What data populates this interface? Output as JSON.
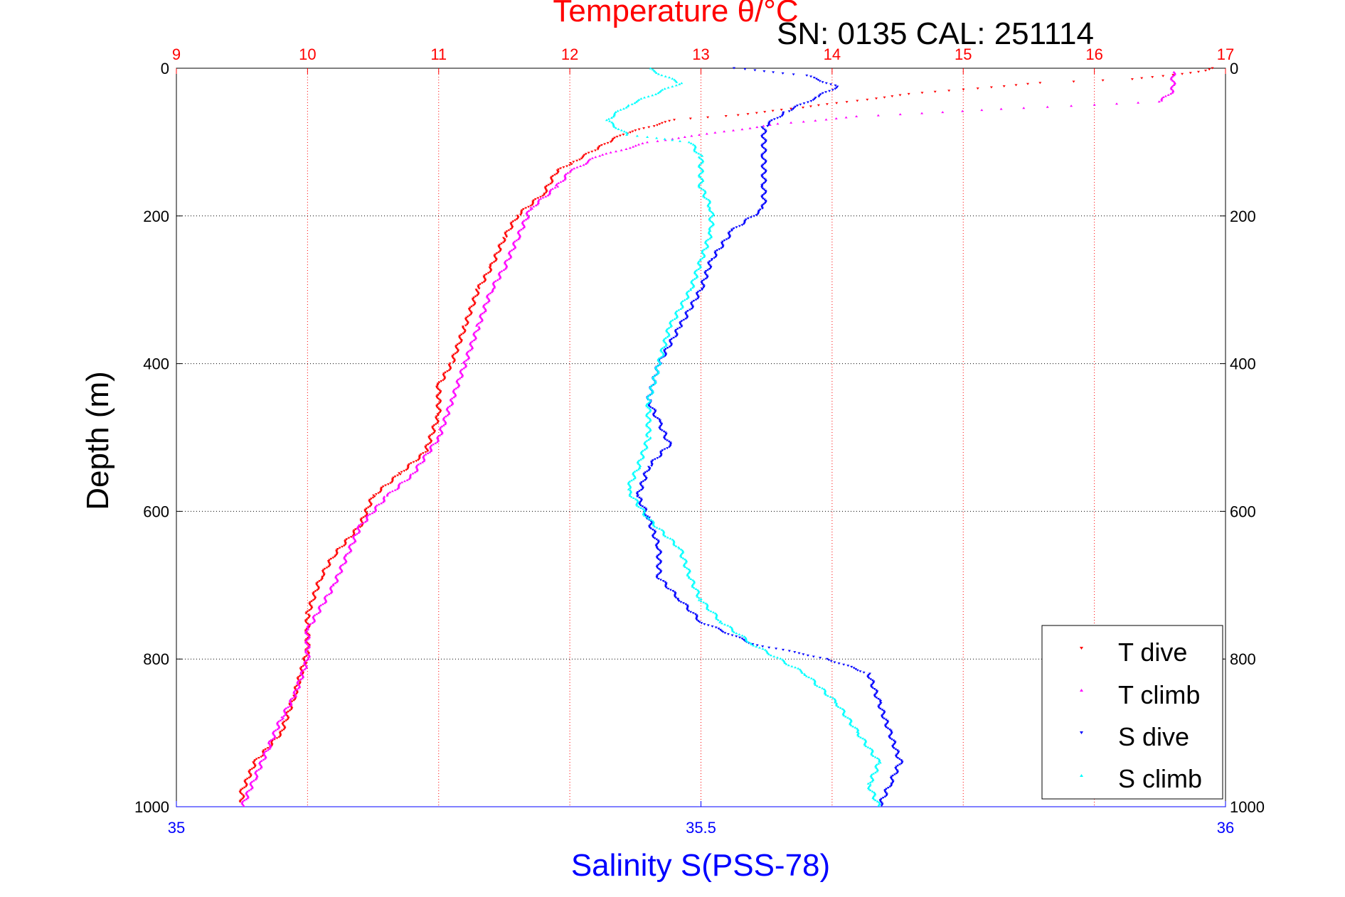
{
  "chart_data": {
    "type": "scatter",
    "title": "Temperature θ/°C",
    "subtitle": "SN: 0135  CAL: 251114",
    "ylabel": "Depth (m)",
    "xlabel": "Salinity S(PSS-78)",
    "y_axis": {
      "min": 0,
      "max": 1000,
      "inverted": true,
      "ticks": [
        "0",
        "200",
        "400",
        "600",
        "800",
        "1000"
      ]
    },
    "x_top": {
      "min": 9,
      "max": 17,
      "ticks": [
        "9",
        "10",
        "11",
        "12",
        "13",
        "14",
        "15",
        "16",
        "17"
      ]
    },
    "x_bottom": {
      "min": 35,
      "max": 36,
      "ticks": [
        "35",
        "35.5",
        "36"
      ]
    },
    "grid": true,
    "legend_position": "bottom-right",
    "series": [
      {
        "name": "T dive",
        "axis": "top",
        "color": "#ff0000",
        "points": [
          [
            16.9,
            0
          ],
          [
            16.8,
            5
          ],
          [
            16.3,
            15
          ],
          [
            15.6,
            20
          ],
          [
            14.6,
            35
          ],
          [
            13.7,
            55
          ],
          [
            13.2,
            65
          ],
          [
            12.8,
            70
          ],
          [
            12.6,
            80
          ],
          [
            12.4,
            90
          ],
          [
            12.3,
            100
          ],
          [
            12.2,
            110
          ],
          [
            12.0,
            130
          ],
          [
            11.9,
            140
          ],
          [
            11.8,
            170
          ],
          [
            11.6,
            200
          ],
          [
            11.5,
            230
          ],
          [
            11.4,
            270
          ],
          [
            11.3,
            300
          ],
          [
            11.2,
            350
          ],
          [
            11.1,
            400
          ],
          [
            11.0,
            430
          ],
          [
            11.0,
            470
          ],
          [
            10.9,
            520
          ],
          [
            10.7,
            550
          ],
          [
            10.5,
            580
          ],
          [
            10.4,
            620
          ],
          [
            10.2,
            660
          ],
          [
            10.1,
            690
          ],
          [
            10.0,
            740
          ],
          [
            10.0,
            790
          ],
          [
            9.9,
            850
          ],
          [
            9.8,
            900
          ],
          [
            9.6,
            940
          ],
          [
            9.5,
            980
          ],
          [
            9.5,
            995
          ]
        ]
      },
      {
        "name": "T climb",
        "axis": "top",
        "color": "#ff00ff",
        "points": [
          [
            16.6,
            5
          ],
          [
            16.6,
            30
          ],
          [
            16.5,
            45
          ],
          [
            15.3,
            55
          ],
          [
            14.2,
            65
          ],
          [
            13.6,
            75
          ],
          [
            13.0,
            90
          ],
          [
            12.6,
            100
          ],
          [
            12.2,
            120
          ],
          [
            12.0,
            140
          ],
          [
            11.9,
            160
          ],
          [
            11.7,
            190
          ],
          [
            11.6,
            230
          ],
          [
            11.5,
            270
          ],
          [
            11.4,
            300
          ],
          [
            11.3,
            350
          ],
          [
            11.2,
            400
          ],
          [
            11.1,
            450
          ],
          [
            11.0,
            500
          ],
          [
            10.8,
            550
          ],
          [
            10.6,
            580
          ],
          [
            10.4,
            620
          ],
          [
            10.3,
            660
          ],
          [
            10.2,
            700
          ],
          [
            10.0,
            760
          ],
          [
            10.0,
            800
          ],
          [
            9.9,
            850
          ],
          [
            9.8,
            880
          ],
          [
            9.7,
            920
          ],
          [
            9.6,
            960
          ],
          [
            9.5,
            1000
          ]
        ]
      },
      {
        "name": "S dive",
        "axis": "bottom",
        "color": "#0000ff",
        "points": [
          [
            35.53,
            0
          ],
          [
            35.6,
            10
          ],
          [
            35.63,
            25
          ],
          [
            35.61,
            40
          ],
          [
            35.58,
            60
          ],
          [
            35.56,
            80
          ],
          [
            35.56,
            120
          ],
          [
            35.56,
            160
          ],
          [
            35.56,
            190
          ],
          [
            35.53,
            220
          ],
          [
            35.51,
            260
          ],
          [
            35.5,
            300
          ],
          [
            35.48,
            350
          ],
          [
            35.46,
            400
          ],
          [
            35.45,
            450
          ],
          [
            35.46,
            480
          ],
          [
            35.47,
            510
          ],
          [
            35.45,
            540
          ],
          [
            35.44,
            580
          ],
          [
            35.45,
            610
          ],
          [
            35.46,
            650
          ],
          [
            35.46,
            690
          ],
          [
            35.48,
            720
          ],
          [
            35.5,
            750
          ],
          [
            35.55,
            780
          ],
          [
            35.62,
            800
          ],
          [
            35.66,
            820
          ],
          [
            35.67,
            860
          ],
          [
            35.68,
            900
          ],
          [
            35.69,
            940
          ],
          [
            35.68,
            970
          ],
          [
            35.67,
            1000
          ]
        ]
      },
      {
        "name": "S climb",
        "axis": "bottom",
        "color": "#00ffff",
        "points": [
          [
            35.45,
            0
          ],
          [
            35.48,
            20
          ],
          [
            35.43,
            50
          ],
          [
            35.41,
            70
          ],
          [
            35.43,
            90
          ],
          [
            35.49,
            100
          ],
          [
            35.5,
            120
          ],
          [
            35.5,
            160
          ],
          [
            35.51,
            190
          ],
          [
            35.51,
            220
          ],
          [
            35.5,
            260
          ],
          [
            35.49,
            300
          ],
          [
            35.47,
            350
          ],
          [
            35.46,
            400
          ],
          [
            35.45,
            450
          ],
          [
            35.45,
            500
          ],
          [
            35.44,
            540
          ],
          [
            35.43,
            570
          ],
          [
            35.45,
            610
          ],
          [
            35.48,
            650
          ],
          [
            35.49,
            690
          ],
          [
            35.5,
            720
          ],
          [
            35.52,
            750
          ],
          [
            35.55,
            780
          ],
          [
            35.6,
            820
          ],
          [
            35.63,
            860
          ],
          [
            35.65,
            900
          ],
          [
            35.67,
            940
          ],
          [
            35.66,
            970
          ],
          [
            35.67,
            1000
          ]
        ]
      }
    ]
  }
}
